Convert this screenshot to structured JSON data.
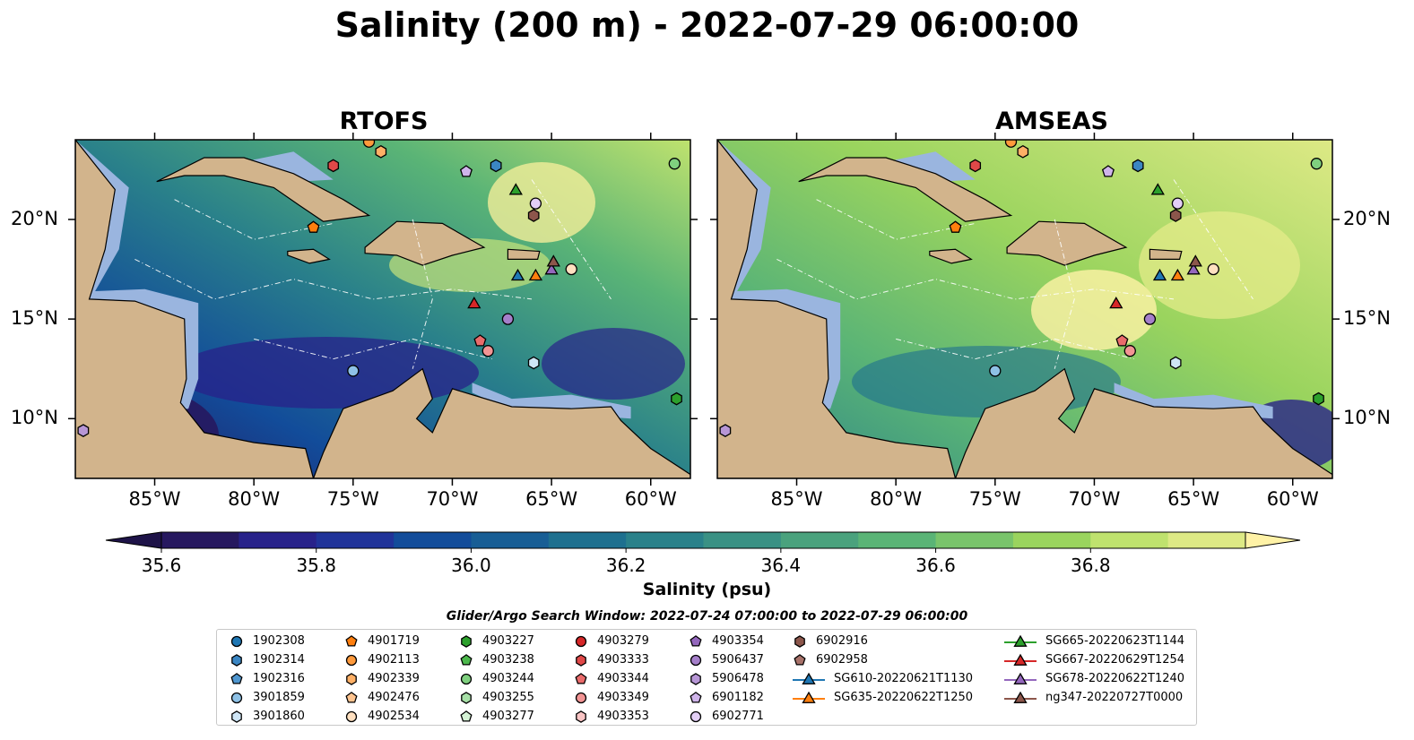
{
  "title": "Salinity (200 m) - 2022-07-29 06:00:00",
  "panels": [
    {
      "title": "RTOFS"
    },
    {
      "title": "AMSEAS"
    }
  ],
  "lat_labels": [
    "20°N",
    "15°N",
    "10°N"
  ],
  "lon_labels": [
    "85°W",
    "80°W",
    "75°W",
    "70°W",
    "65°W",
    "60°W"
  ],
  "colorbar": {
    "label": "Salinity (psu)",
    "ticks": [
      "35.6",
      "35.8",
      "36.0",
      "36.2",
      "36.4",
      "36.6",
      "36.8"
    ],
    "colors": [
      "#26185f",
      "#28228a",
      "#203399",
      "#124c9a",
      "#185e95",
      "#1e708f",
      "#2a818a",
      "#3a9184",
      "#4aa27d",
      "#5ab476",
      "#79c46b",
      "#9ad45e",
      "#bfe26e",
      "#dde985"
    ],
    "under_color": "#1e1348",
    "over_color": "#fff2a6"
  },
  "search_window": "Glider/Argo Search Window: 2022-07-24 07:00:00 to 2022-07-29 06:00:00",
  "legend_items": [
    {
      "label": "1902308",
      "shape": "circle",
      "color": "#1f77b4"
    },
    {
      "label": "1902314",
      "shape": "hexagon",
      "color": "#3b86c3"
    },
    {
      "label": "1902316",
      "shape": "pentagon",
      "color": "#4f96cf"
    },
    {
      "label": "3901859",
      "shape": "circle",
      "color": "#8ec1e6"
    },
    {
      "label": "3901860",
      "shape": "hexagon",
      "color": "#cfe6f6"
    },
    {
      "label": "4901719",
      "shape": "pentagon",
      "color": "#ff7f0e"
    },
    {
      "label": "4902113",
      "shape": "circle",
      "color": "#ff9a3c"
    },
    {
      "label": "4902339",
      "shape": "hexagon",
      "color": "#ffb066"
    },
    {
      "label": "4902476",
      "shape": "pentagon",
      "color": "#ffc48f"
    },
    {
      "label": "4902534",
      "shape": "circle",
      "color": "#ffe0c0"
    },
    {
      "label": "4903227",
      "shape": "hexagon",
      "color": "#2ca02c"
    },
    {
      "label": "4903238",
      "shape": "pentagon",
      "color": "#4cb84c"
    },
    {
      "label": "4903244",
      "shape": "circle",
      "color": "#7fd07f"
    },
    {
      "label": "4903255",
      "shape": "hexagon",
      "color": "#a7e0a7"
    },
    {
      "label": "4903277",
      "shape": "pentagon",
      "color": "#d4f2d4"
    },
    {
      "label": "4903279",
      "shape": "circle",
      "color": "#d62728"
    },
    {
      "label": "4903333",
      "shape": "hexagon",
      "color": "#e04848"
    },
    {
      "label": "4903344",
      "shape": "pentagon",
      "color": "#ea6b6b"
    },
    {
      "label": "4903349",
      "shape": "circle",
      "color": "#f29494"
    },
    {
      "label": "4903353",
      "shape": "hexagon",
      "color": "#f9c4c4"
    },
    {
      "label": "4903354",
      "shape": "pentagon",
      "color": "#9467bd"
    },
    {
      "label": "5906437",
      "shape": "circle",
      "color": "#a57fca"
    },
    {
      "label": "5906478",
      "shape": "hexagon",
      "color": "#b796d6"
    },
    {
      "label": "6901182",
      "shape": "pentagon",
      "color": "#cfb4ea"
    },
    {
      "label": "6902771",
      "shape": "circle",
      "color": "#e3cff6"
    },
    {
      "label": "6902916",
      "shape": "hexagon",
      "color": "#8c564b"
    },
    {
      "label": "6902958",
      "shape": "pentagon",
      "color": "#a8726a"
    },
    {
      "label": "SG610-20220621T1130",
      "shape": "triangle",
      "color": "#1f77b4"
    },
    {
      "label": "SG635-20220622T1250",
      "shape": "triangle",
      "color": "#ff7f0e"
    },
    {
      "label": "SG665-20220623T1144",
      "shape": "triangle",
      "color": "#2ca02c"
    },
    {
      "label": "SG667-20220629T1254",
      "shape": "triangle",
      "color": "#d62728"
    },
    {
      "label": "SG678-20220622T1240",
      "shape": "triangle",
      "color": "#9467bd"
    },
    {
      "label": "ng347-20220727T0000",
      "shape": "triangle",
      "color": "#8c564b"
    }
  ],
  "map": {
    "extent_lon": [
      -89,
      -58
    ],
    "extent_lat": [
      7,
      24
    ],
    "land_color": "#d2b48c",
    "shelf_color": "#9ab5df",
    "markers": [
      {
        "id": "4903333",
        "lon": -76,
        "lat": 22.7
      },
      {
        "id": "4902113",
        "lon": -74.2,
        "lat": 23.9
      },
      {
        "id": "4902339",
        "lon": -73.6,
        "lat": 23.4
      },
      {
        "id": "6901182",
        "lon": -69.3,
        "lat": 22.4
      },
      {
        "id": "1902314",
        "lon": -67.8,
        "lat": 22.7
      },
      {
        "id": "SG665-20220623T1144",
        "lon": -66.8,
        "lat": 21.5
      },
      {
        "id": "6902771",
        "lon": -65.8,
        "lat": 20.8
      },
      {
        "id": "6902916",
        "lon": -65.9,
        "lat": 20.2
      },
      {
        "id": "4903244",
        "lon": -58.8,
        "lat": 22.8
      },
      {
        "id": "4901719",
        "lon": -77.0,
        "lat": 19.6
      },
      {
        "id": "SG610-20220621T1130",
        "lon": -66.7,
        "lat": 17.2
      },
      {
        "id": "SG635-20220622T1250",
        "lon": -65.8,
        "lat": 17.2
      },
      {
        "id": "SG678-20220622T1240",
        "lon": -65.0,
        "lat": 17.5
      },
      {
        "id": "ng347-20220727T0000",
        "lon": -64.9,
        "lat": 17.9
      },
      {
        "id": "4902534",
        "lon": -64.0,
        "lat": 17.5
      },
      {
        "id": "SG667-20220629T1254",
        "lon": -68.9,
        "lat": 15.8
      },
      {
        "id": "5906437",
        "lon": -67.2,
        "lat": 15.0
      },
      {
        "id": "4903344",
        "lon": -68.6,
        "lat": 13.9
      },
      {
        "id": "4903349",
        "lon": -68.2,
        "lat": 13.4
      },
      {
        "id": "3901860",
        "lon": -65.9,
        "lat": 12.8
      },
      {
        "id": "3901859",
        "lon": -75.0,
        "lat": 12.4
      },
      {
        "id": "4903227",
        "lon": -58.7,
        "lat": 11.0
      },
      {
        "id": "5906478",
        "lon": -88.6,
        "lat": 9.4
      }
    ]
  }
}
